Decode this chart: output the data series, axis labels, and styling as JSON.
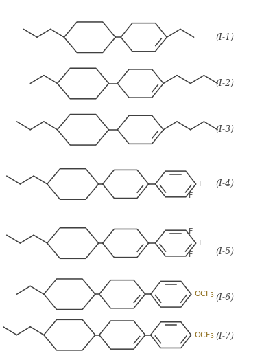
{
  "bg_color": "#ffffff",
  "line_color": "#404040",
  "text_color": "#404040",
  "figsize": [
    3.82,
    5.27
  ],
  "dpi": 100,
  "labels": [
    "(I-1)",
    "(I-2)",
    "(I-3)",
    "(I-4)",
    "(I-5)",
    "(I-6)",
    "(I-7)"
  ],
  "label_fontsize": 9
}
